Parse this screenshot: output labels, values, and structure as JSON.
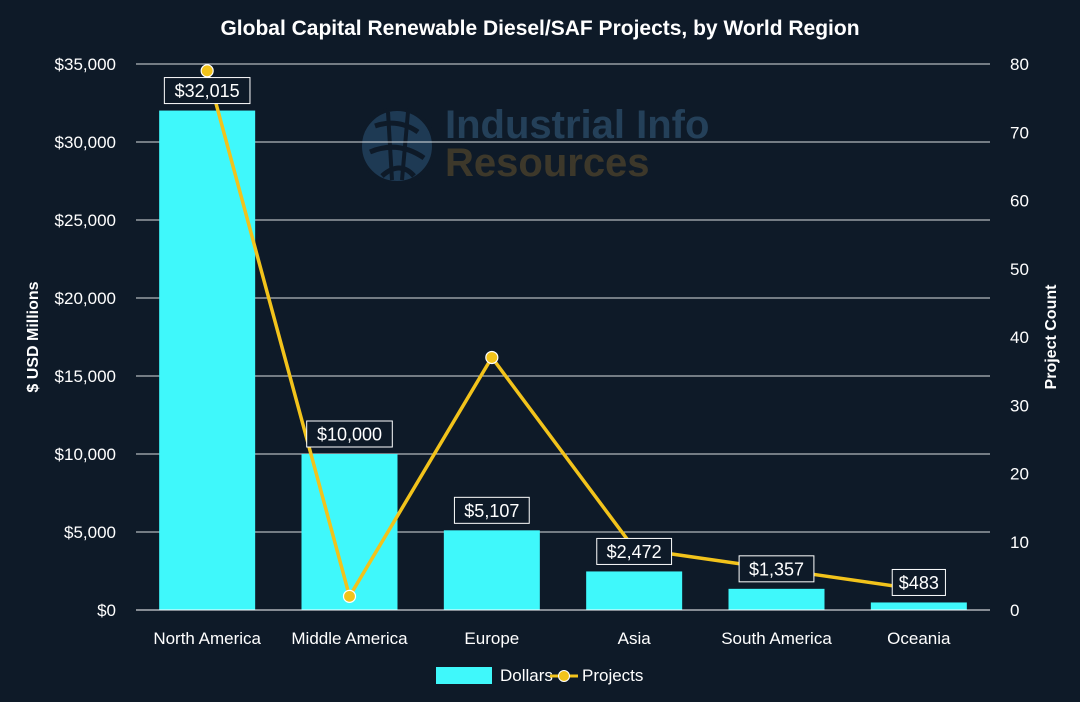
{
  "chart_data": {
    "type": "bar",
    "title": "Global Capital Renewable Diesel/SAF Projects, by World Region",
    "watermark": {
      "line1": "Industrial Info",
      "line2": "Resources"
    },
    "categories": [
      "North America",
      "Middle America",
      "Europe",
      "Asia",
      "South America",
      "Oceania"
    ],
    "series": [
      {
        "name": "Dollars",
        "kind": "bar",
        "axis": "left",
        "values": [
          32015,
          10000,
          5107,
          2472,
          1357,
          483
        ],
        "labels": [
          "$32,015",
          "$10,000",
          "$5,107",
          "$2,472",
          "$1,357",
          "$483"
        ],
        "color": "#3ff8fb"
      },
      {
        "name": "Projects",
        "kind": "line",
        "axis": "right",
        "values": [
          79,
          2,
          37,
          9,
          6,
          3
        ],
        "color": "#f2c31b"
      }
    ],
    "ylabel": "$ USD Millions",
    "y2label": "Project Count",
    "xlabel": "",
    "ylim": [
      0,
      35000
    ],
    "y2lim": [
      0,
      80
    ],
    "yticks": [
      0,
      5000,
      10000,
      15000,
      20000,
      25000,
      30000,
      35000
    ],
    "ytick_labels": [
      "$0",
      "$5,000",
      "$10,000",
      "$15,000",
      "$20,000",
      "$25,000",
      "$30,000",
      "$35,000"
    ],
    "y2ticks": [
      0,
      10,
      20,
      30,
      40,
      50,
      60,
      70,
      80
    ],
    "y2tick_labels": [
      "0",
      "10",
      "20",
      "30",
      "40",
      "50",
      "60",
      "70",
      "80"
    ],
    "grid": true,
    "legend_position": "bottom-center",
    "legend": [
      "Dollars",
      "Projects"
    ],
    "colors": {
      "background": "#0e1a28",
      "text": "#ffffff",
      "grid": "#ffffff",
      "label_box": "#0e1a28"
    }
  }
}
